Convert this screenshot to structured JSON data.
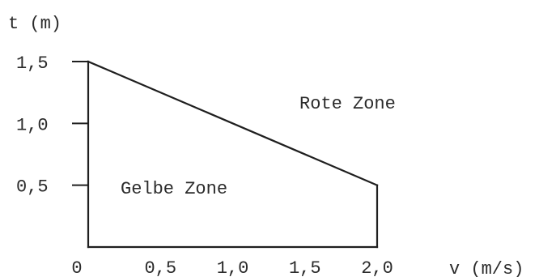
{
  "chart_data": {
    "type": "line",
    "ylabel": "t (m)",
    "xlabel": "v (m/s)",
    "x_ticks": [
      {
        "value": 0,
        "label": "0"
      },
      {
        "value": 0.5,
        "label": "0,5"
      },
      {
        "value": 1.0,
        "label": "1,0"
      },
      {
        "value": 1.5,
        "label": "1,5"
      },
      {
        "value": 2.0,
        "label": "2,0"
      }
    ],
    "y_ticks": [
      {
        "value": 1.5,
        "label": "1,5"
      },
      {
        "value": 1.0,
        "label": "1,0"
      },
      {
        "value": 0.5,
        "label": "0,5"
      }
    ],
    "xlim": [
      0,
      2.0
    ],
    "ylim": [
      0,
      1.5
    ],
    "boundary": {
      "x": [
        0,
        2.0
      ],
      "y": [
        1.5,
        0.5
      ]
    },
    "region_labels": {
      "upper": "Rote Zone",
      "lower": "Gelbe Zone"
    },
    "grid": false,
    "line_color": "#1f1f1f",
    "text_color": "#2b2b2b"
  }
}
